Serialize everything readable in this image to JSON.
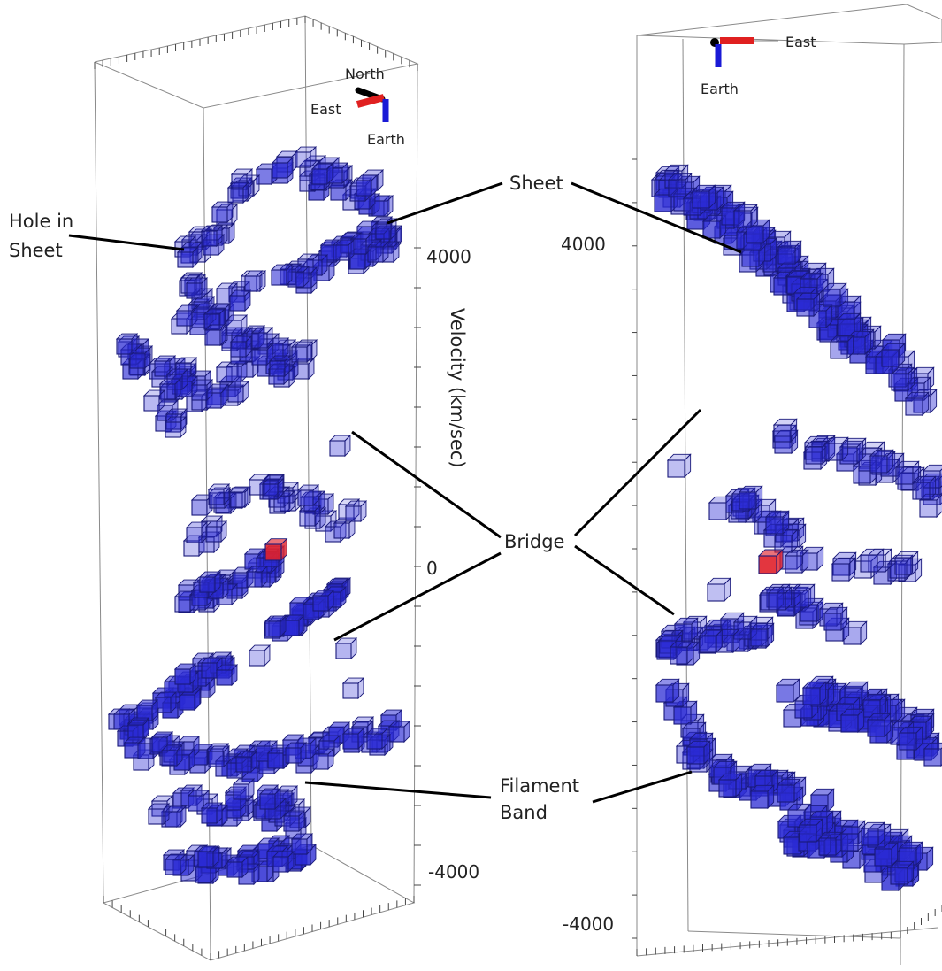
{
  "colors": {
    "voxel": "#2b2bd4",
    "voxel_highlight": "#e0202a",
    "axis_east": "#e02020",
    "axis_north": "#000000",
    "axis_earth": "#1a1ad6"
  },
  "left_panel": {
    "orientation": {
      "north": "North",
      "east": "East",
      "earth": "Earth"
    },
    "axis_title": "Velocity (km/sec)",
    "ticks": [
      "4000",
      "0",
      "-4000"
    ]
  },
  "right_panel": {
    "orientation": {
      "east": "East",
      "earth": "Earth"
    },
    "ticks": [
      "4000",
      "-4000"
    ]
  },
  "annotations": {
    "hole": [
      "Hole in",
      "Sheet"
    ],
    "sheet": "Sheet",
    "bridge": "Bridge",
    "filament": [
      "Filament",
      "Band"
    ]
  }
}
